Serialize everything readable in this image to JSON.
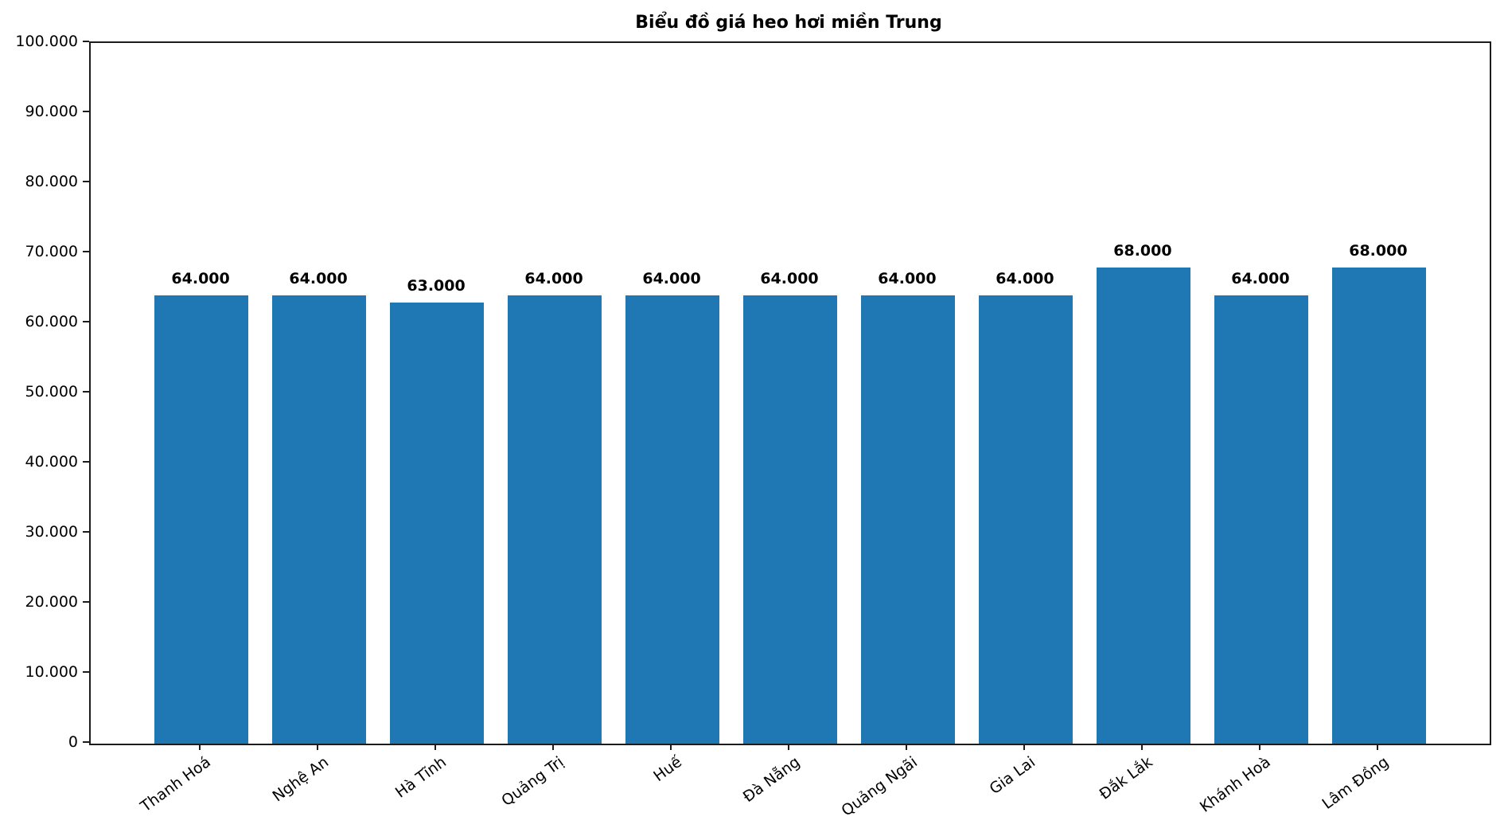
{
  "chart_data": {
    "type": "bar",
    "title": "Biểu đồ giá heo hơi miền Trung",
    "xlabel": "",
    "ylabel": "",
    "categories": [
      "Thanh Hoá",
      "Nghệ An",
      "Hà Tĩnh",
      "Quảng Trị",
      "Huế",
      "Đà Nẵng",
      "Quảng Ngãi",
      "Gia Lai",
      "Đắk Lắk",
      "Khánh Hoà",
      "Lâm Đồng"
    ],
    "values": [
      64000,
      64000,
      63000,
      64000,
      64000,
      64000,
      64000,
      64000,
      68000,
      64000,
      68000
    ],
    "value_labels": [
      "64.000",
      "64.000",
      "63.000",
      "64.000",
      "64.000",
      "64.000",
      "64.000",
      "64.000",
      "68.000",
      "64.000",
      "68.000"
    ],
    "ylim": [
      0,
      100000
    ],
    "yticks": {
      "values": [
        0,
        10000,
        20000,
        30000,
        40000,
        50000,
        60000,
        70000,
        80000,
        90000,
        100000
      ],
      "labels": [
        "0",
        "10.000",
        "20.000",
        "30.000",
        "40.000",
        "50.000",
        "60.000",
        "70.000",
        "80.000",
        "90.000",
        "100.000"
      ]
    },
    "bar_color": "#1f77b4",
    "grid": false,
    "legend": null
  }
}
